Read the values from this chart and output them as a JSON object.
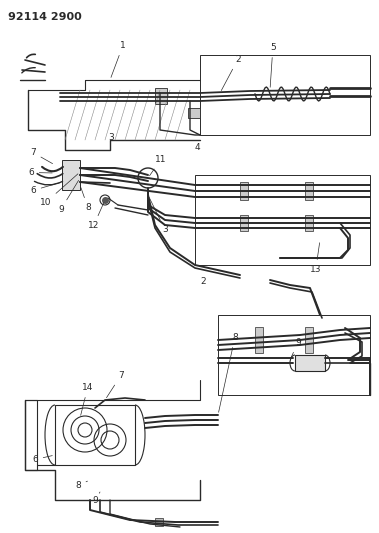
{
  "title": "92114 2900",
  "bg_color": "#ffffff",
  "lc": "#2a2a2a",
  "figsize": [
    3.79,
    5.33
  ],
  "dpi": 100,
  "title_fs": 8,
  "label_fs": 6.5
}
